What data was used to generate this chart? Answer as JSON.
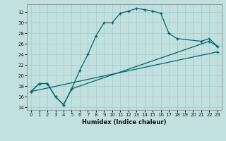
{
  "xlabel": "Humidex (Indice chaleur)",
  "bg_color": "#c2e0e0",
  "grid_color": "#a8cccc",
  "line_color": "#006666",
  "xlim": [
    -0.5,
    23.5
  ],
  "ylim": [
    13.5,
    33.5
  ],
  "xticks": [
    0,
    1,
    2,
    3,
    4,
    5,
    6,
    7,
    8,
    9,
    10,
    11,
    12,
    13,
    14,
    15,
    16,
    17,
    18,
    19,
    20,
    21,
    22,
    23
  ],
  "yticks": [
    14,
    16,
    18,
    20,
    22,
    24,
    26,
    28,
    30,
    32
  ],
  "line1_x": [
    0,
    1,
    2,
    3,
    4,
    5,
    6,
    7,
    8,
    9,
    10,
    11,
    12,
    13,
    14,
    15,
    16,
    17,
    18,
    21,
    22,
    23
  ],
  "line1_y": [
    17.0,
    18.5,
    18.5,
    16.0,
    14.5,
    17.5,
    21.0,
    24.0,
    27.5,
    30.0,
    30.0,
    31.8,
    32.2,
    32.7,
    32.5,
    32.2,
    31.8,
    28.0,
    27.0,
    26.5,
    27.0,
    25.5
  ],
  "line2_x": [
    0,
    1,
    2,
    3,
    4,
    5,
    22,
    23
  ],
  "line2_y": [
    17.0,
    18.5,
    18.5,
    16.0,
    14.5,
    17.5,
    26.5,
    25.5
  ],
  "line3_x": [
    0,
    23
  ],
  "line3_y": [
    17.0,
    24.5
  ],
  "markersize": 2.5,
  "linewidth": 0.9
}
